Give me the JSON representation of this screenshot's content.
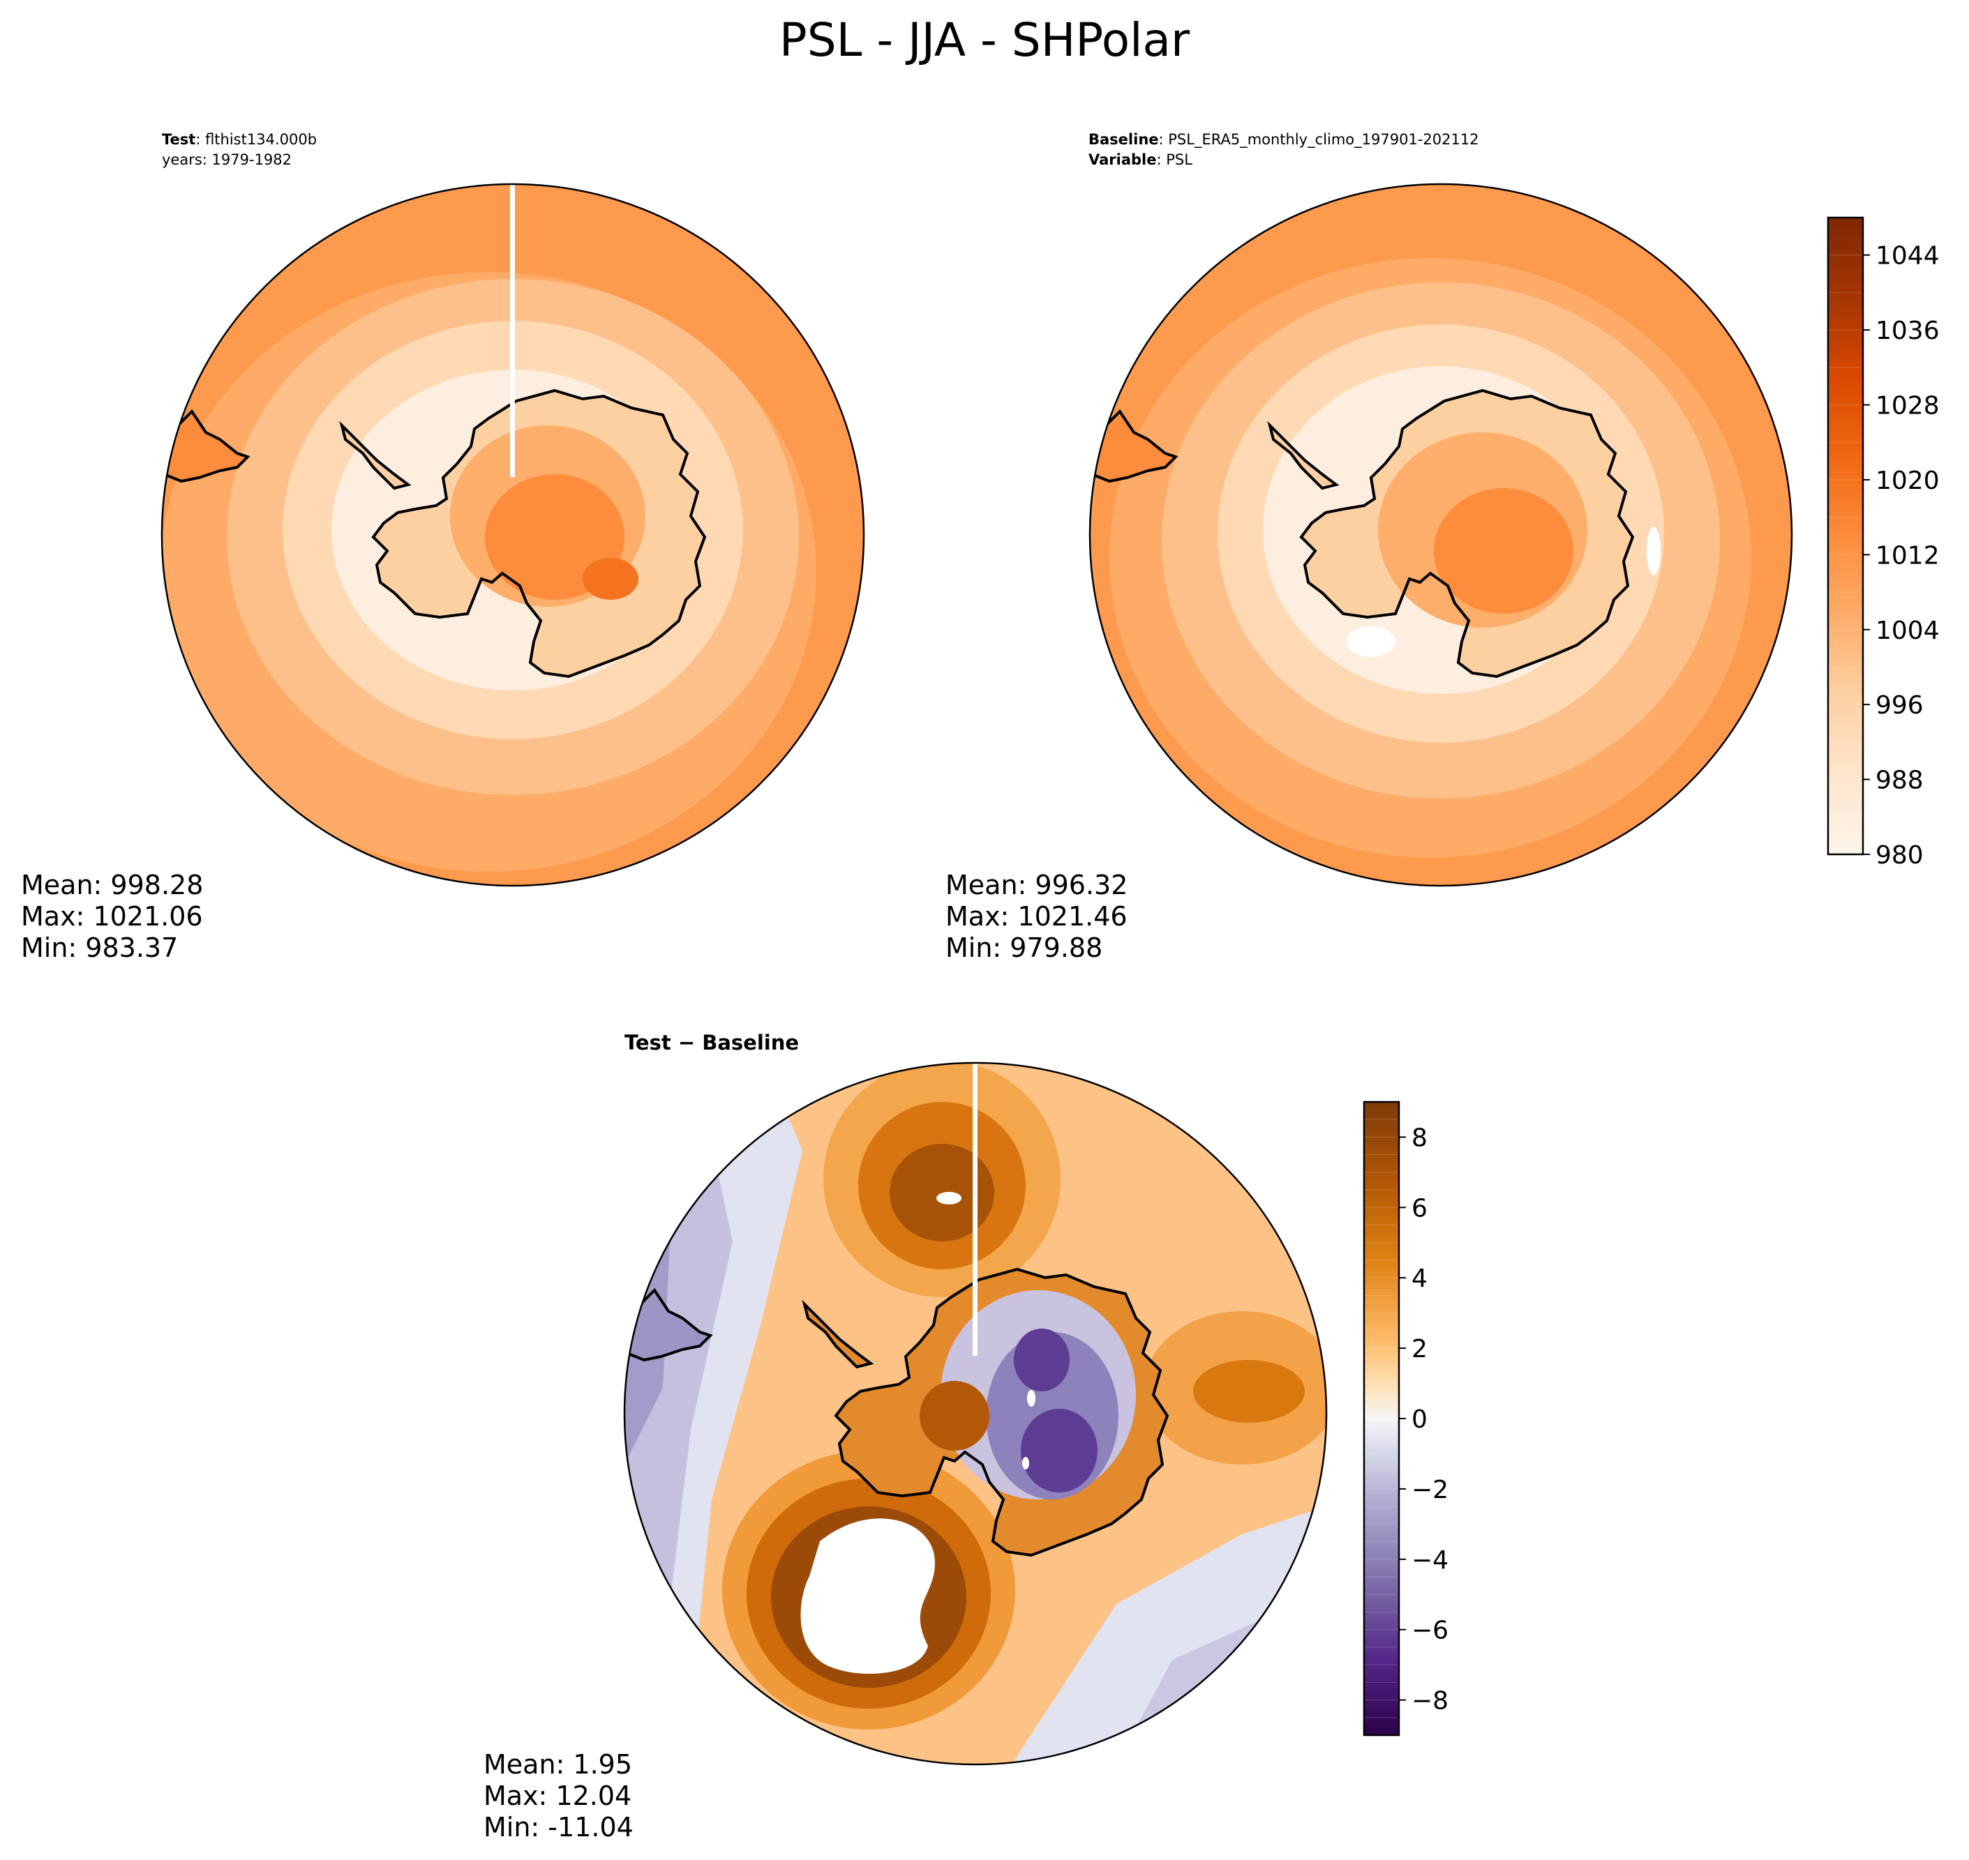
{
  "figure": {
    "title": "PSL - JJA - SHPolar"
  },
  "colors": {
    "oranges_low": "#fff5eb",
    "oranges_high": "#7f2704",
    "diff_negative": "#2d004b",
    "diff_zero": "#f7f7f7",
    "diff_positive": "#7f3b08",
    "coastline": "#000000"
  },
  "chart_data": [
    {
      "type": "heatmap",
      "projection": "south-polar-stereographic",
      "panel": "test",
      "header": {
        "label_bold": "Test",
        "label_value": ": flthist134.000b",
        "line2": "years: 1979-1982"
      },
      "stats": {
        "mean": "Mean: 998.28",
        "max": "Max: 1021.06",
        "min": "Min: 983.37"
      },
      "value_range": [
        980,
        1048
      ],
      "features": {
        "antarctic_high_center": 1016,
        "interior_ring": 988,
        "outer_ring": 1006
      }
    },
    {
      "type": "heatmap",
      "projection": "south-polar-stereographic",
      "panel": "baseline",
      "header": {
        "label_bold": "Baseline",
        "label_value": ": PSL_ERA5_monthly_climo_197901-202112",
        "line2_bold": "Variable",
        "line2_value": ": PSL"
      },
      "stats": {
        "mean": "Mean: 996.32",
        "max": "Max: 1021.46",
        "min": "Min: 979.88"
      },
      "value_range": [
        980,
        1048
      ],
      "colorbar": {
        "ticks": [
          980,
          988,
          996,
          1004,
          1012,
          1020,
          1028,
          1036,
          1044
        ],
        "tick_labels": [
          "980",
          "988",
          "996",
          "1004",
          "1012",
          "1020",
          "1028",
          "1036",
          "1044"
        ],
        "levels": 17
      }
    },
    {
      "type": "heatmap",
      "projection": "south-polar-stereographic",
      "panel": "difference",
      "header": {
        "label": "Test − Baseline"
      },
      "stats": {
        "mean": "Mean:  1.95",
        "max": "Max: 12.04",
        "min": "Min: -11.04"
      },
      "value_range": [
        -9,
        9
      ],
      "colorbar": {
        "ticks": [
          -8,
          -6,
          -4,
          -2,
          0,
          2,
          4,
          6,
          8
        ],
        "tick_labels": [
          "−8",
          "−6",
          "−4",
          "−2",
          "0",
          "2",
          "4",
          "6",
          "8"
        ],
        "levels": 36
      }
    }
  ]
}
